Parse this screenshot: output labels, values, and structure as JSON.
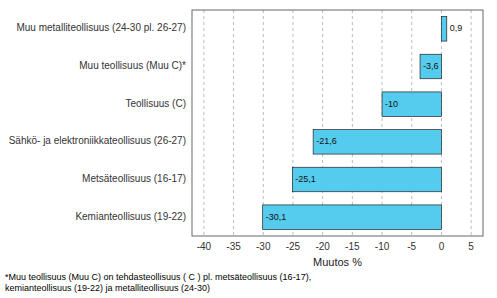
{
  "chart_data": {
    "type": "bar",
    "orientation": "horizontal",
    "categories": [
      "Kemianteollisuus (19-22)",
      "Metsäteollisuus (16-17)",
      "Sähkö- ja elektroniikkateollisuus (26-27)",
      "Teollisuus (C)",
      "Muu teollisuus (Muu C)*",
      "Muu metalliteollisuus (24-30 pl. 26-27)"
    ],
    "values": [
      -30.1,
      -25.1,
      -21.6,
      -10.0,
      -3.6,
      0.9
    ],
    "value_labels": [
      "-30,1",
      "-25,1",
      "-21,6",
      "-10",
      "-3,6",
      "0,9"
    ],
    "data_labels": true,
    "color": "#55CCEE",
    "x_label": "Muutos %",
    "xlim": [
      -42,
      7
    ],
    "xticks": [
      -40,
      -35,
      -30,
      -25,
      -20,
      -15,
      -10,
      -5,
      0,
      5
    ],
    "grid": true,
    "annotations": [
      "*Muu teollisuus (Muu C) on tehdasteollisuus ( C ) pl. metsäteollisuus (16-17),\nkemianteollisuus (19-22) ja metalliteollisuus (24-30)"
    ]
  }
}
